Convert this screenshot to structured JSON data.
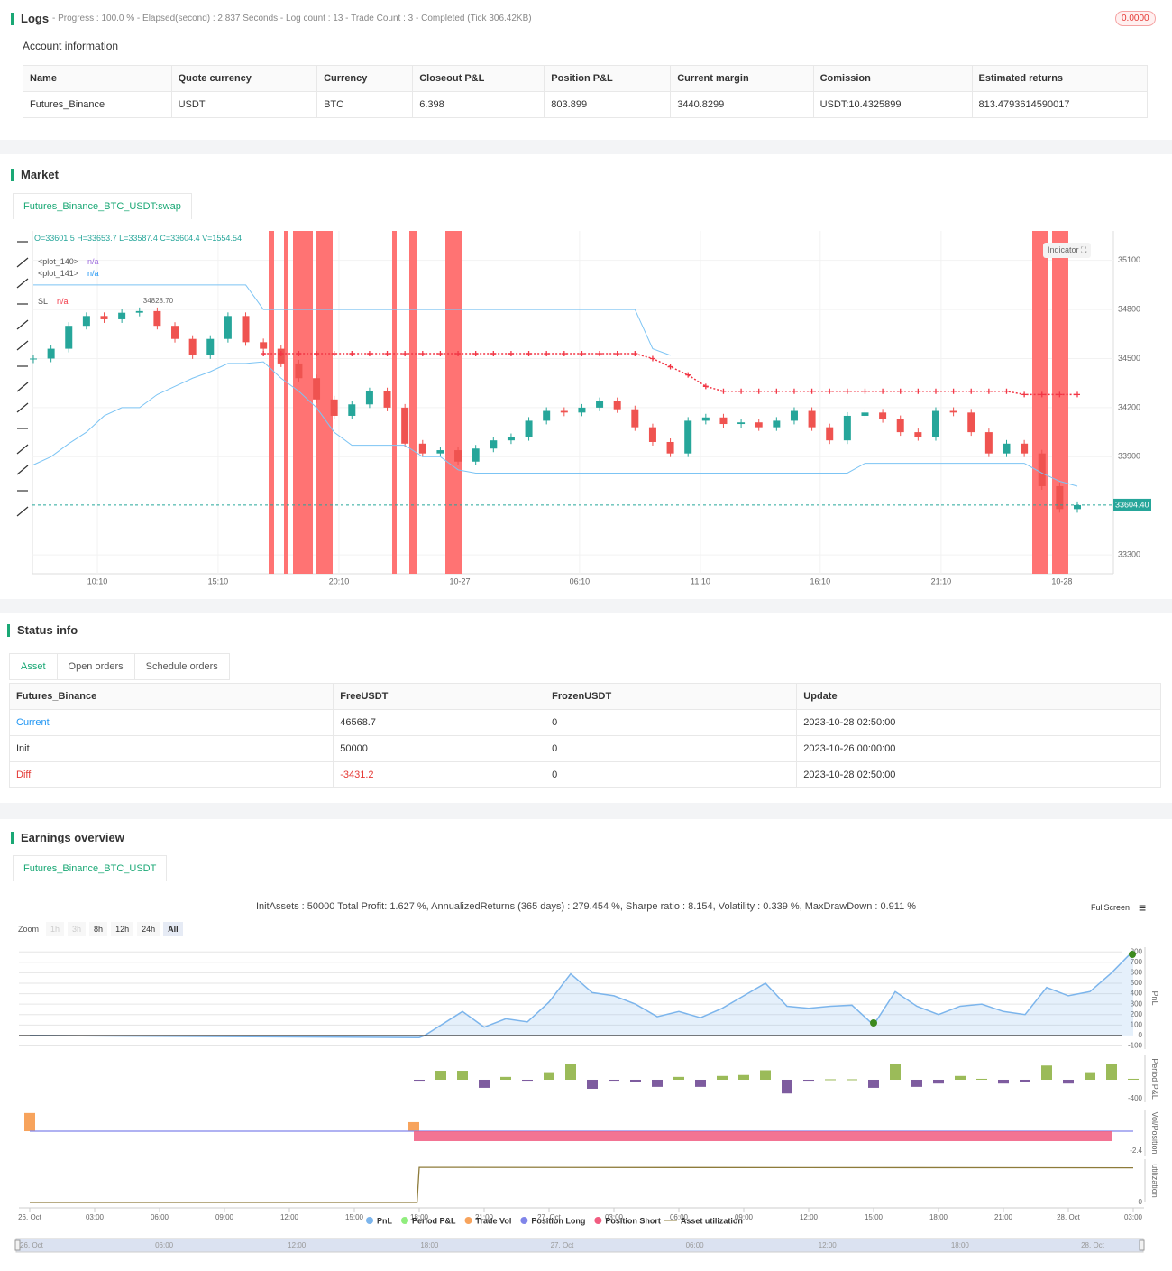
{
  "logs": {
    "title": "Logs",
    "summary": "- Progress : 100.0 % - Elapsed(second) : 2.837  Seconds - Log count : 13 - Trade Count : 3 - Completed (Tick 306.42KB)",
    "badge": "0.0000"
  },
  "account": {
    "title": "Account information",
    "table": {
      "columns": [
        "Name",
        "Quote currency",
        "Currency",
        "Closeout P&L",
        "Position P&L",
        "Current margin",
        "Comission",
        "Estimated returns"
      ],
      "rows": [
        [
          "Futures_Binance",
          "USDT",
          "BTC",
          "6.398",
          "803.899",
          "3440.8299",
          "USDT:10.4325899",
          "813.4793614590017"
        ]
      ]
    }
  },
  "market": {
    "title": "Market",
    "tab": "Futures_Binance_BTC_USDT:swap",
    "ohlc": "O=33601.5 H=33653.7 L=33587.4 C=33604.4 V=1554.54",
    "indicator_button": "Indicator",
    "high_label": {
      "value": 34828.7,
      "label": "34828.70"
    },
    "price_label": {
      "value": 33604.4,
      "label": "33604.40"
    },
    "chart": {
      "type": "candlestick",
      "xlim": [
        0,
        59
      ],
      "ylim": [
        33185,
        35280
      ],
      "yticks": [
        33300,
        33900,
        34200,
        34500,
        34800,
        35100
      ],
      "xticks": [
        {
          "value": 3.62,
          "label": "10:10"
        },
        {
          "value": 10.44,
          "label": "15:10"
        },
        {
          "value": 17.27,
          "label": "20:10"
        },
        {
          "value": 24.1,
          "label": "10-27"
        },
        {
          "value": 30.87,
          "label": "06:10"
        },
        {
          "value": 37.7,
          "label": "11:10"
        },
        {
          "value": 44.47,
          "label": "16:10"
        },
        {
          "value": 51.3,
          "label": "21:10"
        },
        {
          "value": 58.13,
          "label": "10-28"
        }
      ],
      "close": [
        34500,
        34560,
        34700,
        34760,
        34740,
        34780,
        34790,
        34700,
        34620,
        34520,
        34620,
        34760,
        34600,
        34560,
        34470,
        34380,
        34250,
        34150,
        34220,
        34300,
        34200,
        33980,
        33920,
        33940,
        33870,
        33950,
        34000,
        34020,
        34120,
        34180,
        34170,
        34200,
        34240,
        34190,
        34080,
        33990,
        33920,
        34120,
        34140,
        34100,
        34110,
        34080,
        34120,
        34180,
        34080,
        34000,
        34150,
        34170,
        34130,
        34050,
        34020,
        34180,
        34170,
        34050,
        33920,
        33980,
        33920,
        33720,
        33580,
        33604.4
      ],
      "up_color": "#26a69a",
      "down_color": "#ef5350",
      "series": [
        {
          "name": "<plot_140>",
          "status": "n/a",
          "status_color": "#9c6ade",
          "color": "#7cc4f4",
          "marker": "line",
          "values": [
            34950,
            34950,
            34950,
            34950,
            34950,
            34950,
            34950,
            34950,
            34950,
            34950,
            34950,
            34950,
            34950,
            34800,
            34800,
            34800,
            34800,
            34800,
            34800,
            34800,
            34800,
            34800,
            34800,
            34800,
            34800,
            34800,
            34800,
            34800,
            34800,
            34800,
            34800,
            34800,
            34800,
            34800,
            34800,
            34560,
            34520,
            null,
            null,
            null,
            null,
            null,
            null,
            null,
            null,
            null,
            null,
            null,
            null,
            null,
            null,
            null,
            null,
            null,
            null,
            null,
            null,
            null,
            null,
            null
          ]
        },
        {
          "name": "<plot_141>",
          "status": "n/a",
          "status_color": "#2196f3",
          "color": "#7cc4f4",
          "marker": "line",
          "values": [
            33850,
            33900,
            33980,
            34050,
            34150,
            34200,
            34200,
            34280,
            34330,
            34380,
            34420,
            34470,
            34470,
            34480,
            34380,
            34300,
            34200,
            34050,
            33970,
            33970,
            33970,
            33970,
            33900,
            33900,
            33820,
            33800,
            33800,
            33800,
            33800,
            33800,
            33800,
            33800,
            33800,
            33800,
            33800,
            33800,
            33800,
            33800,
            33800,
            33800,
            33800,
            33800,
            33800,
            33800,
            33800,
            33800,
            33800,
            33860,
            33860,
            33860,
            33860,
            33860,
            33860,
            33860,
            33860,
            33860,
            33860,
            33800,
            33750,
            33720
          ]
        },
        {
          "name": "SL",
          "status": "n/a",
          "status_color": "#f23645",
          "color": "#f23645",
          "marker": "cross",
          "values": [
            null,
            null,
            null,
            null,
            null,
            null,
            null,
            null,
            null,
            null,
            null,
            null,
            null,
            34530,
            34530,
            34530,
            34530,
            34530,
            34530,
            34530,
            34530,
            34530,
            34530,
            34530,
            34530,
            34530,
            34530,
            34530,
            34530,
            34530,
            34530,
            34530,
            34530,
            34530,
            34530,
            34500,
            34450,
            34400,
            34330,
            34300,
            34300,
            34300,
            34300,
            34300,
            34300,
            34300,
            34300,
            34300,
            34300,
            34300,
            34300,
            34300,
            34300,
            34300,
            34300,
            34300,
            34280,
            34280,
            34280,
            34280
          ]
        }
      ]
    }
  },
  "status": {
    "title": "Status info",
    "tabs": [
      "Asset",
      "Open orders",
      "Schedule orders"
    ],
    "table": {
      "columns": [
        "Futures_Binance",
        "FreeUSDT",
        "FrozenUSDT",
        "Update"
      ],
      "rows": [
        [
          "Current",
          "46568.7",
          "0",
          "2023-10-28 02:50:00"
        ],
        [
          "Init",
          "50000",
          "0",
          "2023-10-26 00:00:00"
        ],
        [
          "Diff",
          "-3431.2",
          "0",
          "2023-10-28 02:50:00"
        ]
      ]
    }
  },
  "earnings": {
    "title": "Earnings overview",
    "tab": "Futures_Binance_BTC_USDT",
    "summary": "InitAssets : 50000 Total Profit: 1.627 %, AnnualizedReturns (365 days) : 279.454 %, Sharpe ratio : 8.154, Volatility : 0.339 %, MaxDrawDown : 0.911 %",
    "fullscreen": "FullScreen",
    "zoom": {
      "label": "Zoom",
      "buttons": [
        "1h",
        "3h",
        "8h",
        "12h",
        "24h",
        "All"
      ]
    },
    "chart": {
      "type": "multi-panel",
      "xlim": [
        -0.5,
        51.5
      ],
      "xticks": [
        {
          "value": 0,
          "label": "26. Oct"
        },
        {
          "value": 3,
          "label": "03:00"
        },
        {
          "value": 6,
          "label": "06:00"
        },
        {
          "value": 9,
          "label": "09:00"
        },
        {
          "value": 12,
          "label": "12:00"
        },
        {
          "value": 15,
          "label": "15:00"
        },
        {
          "value": 18,
          "label": "18:00"
        },
        {
          "value": 21,
          "label": "21:00"
        },
        {
          "value": 24,
          "label": "27. Oct"
        },
        {
          "value": 27,
          "label": "03:00"
        },
        {
          "value": 30,
          "label": "06:00"
        },
        {
          "value": 33,
          "label": "09:00"
        },
        {
          "value": 36,
          "label": "12:00"
        },
        {
          "value": 39,
          "label": "15:00"
        },
        {
          "value": 42,
          "label": "18:00"
        },
        {
          "value": 45,
          "label": "21:00"
        },
        {
          "value": 48,
          "label": "28. Oct"
        },
        {
          "value": 51,
          "label": "03:00"
        }
      ],
      "panels": [
        {
          "type": "area",
          "axis_label": "PnL",
          "ylim": [
            -130,
            845
          ],
          "yticks": [
            -100,
            0,
            100,
            200,
            300,
            400,
            500,
            600,
            700,
            800
          ],
          "series": [
            {
              "name": "PnL",
              "color": "#7cb5ec",
              "x": [
                0,
                18,
                18.25,
                20,
                21,
                22,
                23,
                24,
                25,
                26,
                27,
                28,
                29,
                30,
                31,
                32,
                33,
                34,
                35,
                36,
                37,
                38,
                39,
                40,
                41,
                42,
                43,
                44,
                45,
                46,
                47,
                48,
                49,
                50,
                51
              ],
              "values": [
                0,
                -20,
                0,
                230,
                80,
                160,
                130,
                320,
                590,
                410,
                380,
                300,
                180,
                230,
                170,
                260,
                380,
                500,
                280,
                260,
                280,
                290,
                100,
                420,
                280,
                200,
                280,
                300,
                230,
                200,
                460,
                380,
                420,
                600,
                810
              ]
            }
          ]
        },
        {
          "type": "bar",
          "axis_label": "Period P&L",
          "ylim": [
            -476,
            514
          ],
          "yticks": [
            -400
          ],
          "series": [
            {
              "name": "Period P&L",
              "color": "#90ed7d",
              "up_color": "#9bbb59",
              "down_color": "#7e5c9f",
              "x": [
                18,
                19,
                20,
                21,
                22,
                23,
                24,
                25,
                26,
                27,
                28,
                29,
                30,
                31,
                32,
                33,
                34,
                35,
                36,
                37,
                38,
                39,
                40,
                41,
                42,
                43,
                44,
                45,
                46,
                47,
                48,
                49,
                50,
                51
              ],
              "values": [
                -20,
                190,
                190,
                -170,
                60,
                -20,
                160,
                340,
                -190,
                -20,
                -40,
                -150,
                60,
                -150,
                80,
                100,
                200,
                -290,
                -20,
                10,
                10,
                -170,
                340,
                -150,
                -80,
                80,
                20,
                -80,
                -40,
                300,
                -80,
                160,
                340,
                20
              ]
            }
          ]
        },
        {
          "type": "vol",
          "axis_label": "Vol/Position",
          "ylim": [
            -3.05,
            2.62
          ],
          "yticks": [
            -2.4
          ],
          "series": [
            {
              "name": "Trade Vol",
              "color": "#f7a35c",
              "marker": "bar",
              "x": [
                0,
                17.75
              ],
              "values": [
                2.2,
                1.1
              ]
            },
            {
              "name": "Position Long",
              "color": "#8085e9",
              "marker": "line",
              "x": [
                0,
                51
              ],
              "values": [
                0,
                0
              ]
            },
            {
              "name": "Position Short",
              "color": "#f15c80",
              "marker": "area",
              "x": [
                17.75,
                50
              ],
              "values": [
                -1.2,
                -1.2
              ]
            }
          ]
        },
        {
          "type": "line",
          "axis_label": "utilization",
          "ylim": [
            0,
            1
          ],
          "yticks": [
            0
          ],
          "series": [
            {
              "name": "Asset utilization",
              "color": "#8d7b3a",
              "marker": "line",
              "x": [
                0,
                17.9,
                18,
                51
              ],
              "values": [
                0,
                0,
                0.81,
                0.8
              ]
            }
          ]
        }
      ],
      "navigator": {
        "xlim": [
          0,
          48
        ],
        "xticks": [
          {
            "value": 0,
            "label": "26. Oct"
          },
          {
            "value": 6,
            "label": "06:00"
          },
          {
            "value": 12,
            "label": "12:00"
          },
          {
            "value": 18,
            "label": "18:00"
          },
          {
            "value": 24,
            "label": "27. Oct"
          },
          {
            "value": 30,
            "label": "06:00"
          },
          {
            "value": 36,
            "label": "12:00"
          },
          {
            "value": 42,
            "label": "18:00"
          },
          {
            "value": 48,
            "label": "28. Oct"
          }
        ]
      }
    }
  }
}
